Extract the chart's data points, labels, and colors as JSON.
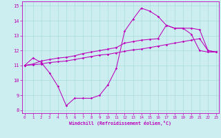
{
  "bg_color": "#cceef0",
  "grid_color": "#aadddd",
  "line_color": "#bb00bb",
  "hours": [
    0,
    1,
    2,
    3,
    4,
    5,
    6,
    7,
    8,
    9,
    10,
    11,
    12,
    13,
    14,
    15,
    16,
    17,
    18,
    19,
    20,
    21,
    22,
    23
  ],
  "curve_main": [
    11.0,
    11.5,
    11.2,
    10.5,
    9.6,
    8.3,
    8.8,
    8.8,
    8.8,
    9.0,
    9.7,
    10.8,
    13.3,
    14.1,
    14.85,
    14.65,
    14.3,
    13.7,
    13.5,
    13.5,
    13.1,
    12.0,
    11.9,
    11.9
  ],
  "curve_upper": [
    11.0,
    11.1,
    11.3,
    11.4,
    11.5,
    11.55,
    11.65,
    11.8,
    11.9,
    12.0,
    12.1,
    12.2,
    12.5,
    12.6,
    12.7,
    12.75,
    12.8,
    13.7,
    13.5,
    13.5,
    13.5,
    13.4,
    12.0,
    11.9
  ],
  "curve_lower": [
    11.0,
    11.05,
    11.1,
    11.2,
    11.25,
    11.3,
    11.4,
    11.5,
    11.6,
    11.7,
    11.75,
    11.85,
    11.95,
    12.05,
    12.1,
    12.2,
    12.3,
    12.4,
    12.5,
    12.6,
    12.7,
    12.8,
    12.0,
    11.9
  ],
  "ylim": [
    7.8,
    15.3
  ],
  "ytick_vals": [
    8,
    9,
    10,
    11,
    12,
    13,
    14,
    15
  ],
  "xlabel": "Windchill (Refroidissement éolien,°C)"
}
